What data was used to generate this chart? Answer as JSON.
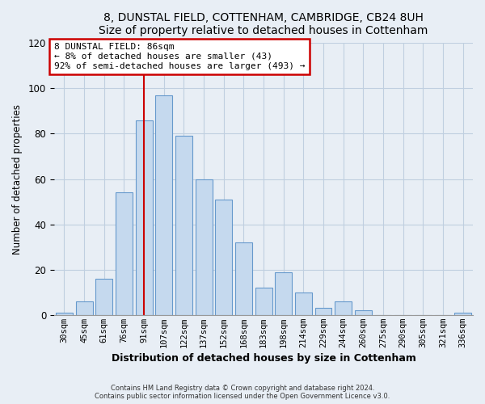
{
  "title": "8, DUNSTAL FIELD, COTTENHAM, CAMBRIDGE, CB24 8UH",
  "subtitle": "Size of property relative to detached houses in Cottenham",
  "xlabel": "Distribution of detached houses by size in Cottenham",
  "ylabel": "Number of detached properties",
  "bar_labels": [
    "30sqm",
    "45sqm",
    "61sqm",
    "76sqm",
    "91sqm",
    "107sqm",
    "122sqm",
    "137sqm",
    "152sqm",
    "168sqm",
    "183sqm",
    "198sqm",
    "214sqm",
    "229sqm",
    "244sqm",
    "260sqm",
    "275sqm",
    "290sqm",
    "305sqm",
    "321sqm",
    "336sqm"
  ],
  "bar_values": [
    1,
    6,
    16,
    54,
    86,
    97,
    79,
    60,
    51,
    32,
    12,
    19,
    10,
    3,
    6,
    2,
    0,
    0,
    0,
    0,
    1
  ],
  "bar_color": "#c5d9ee",
  "bar_edge_color": "#6699cc",
  "highlight_bar_index": 4,
  "highlight_color": "#cc0000",
  "annotation_text": "8 DUNSTAL FIELD: 86sqm\n← 8% of detached houses are smaller (43)\n92% of semi-detached houses are larger (493) →",
  "annotation_box_color": "#ffffff",
  "annotation_box_edge_color": "#cc0000",
  "ylim": [
    0,
    120
  ],
  "yticks": [
    0,
    20,
    40,
    60,
    80,
    100,
    120
  ],
  "footer1": "Contains HM Land Registry data © Crown copyright and database right 2024.",
  "footer2": "Contains public sector information licensed under the Open Government Licence v3.0.",
  "background_color": "#e8eef5",
  "plot_background_color": "#e8eef5",
  "grid_color": "#c0cfe0"
}
